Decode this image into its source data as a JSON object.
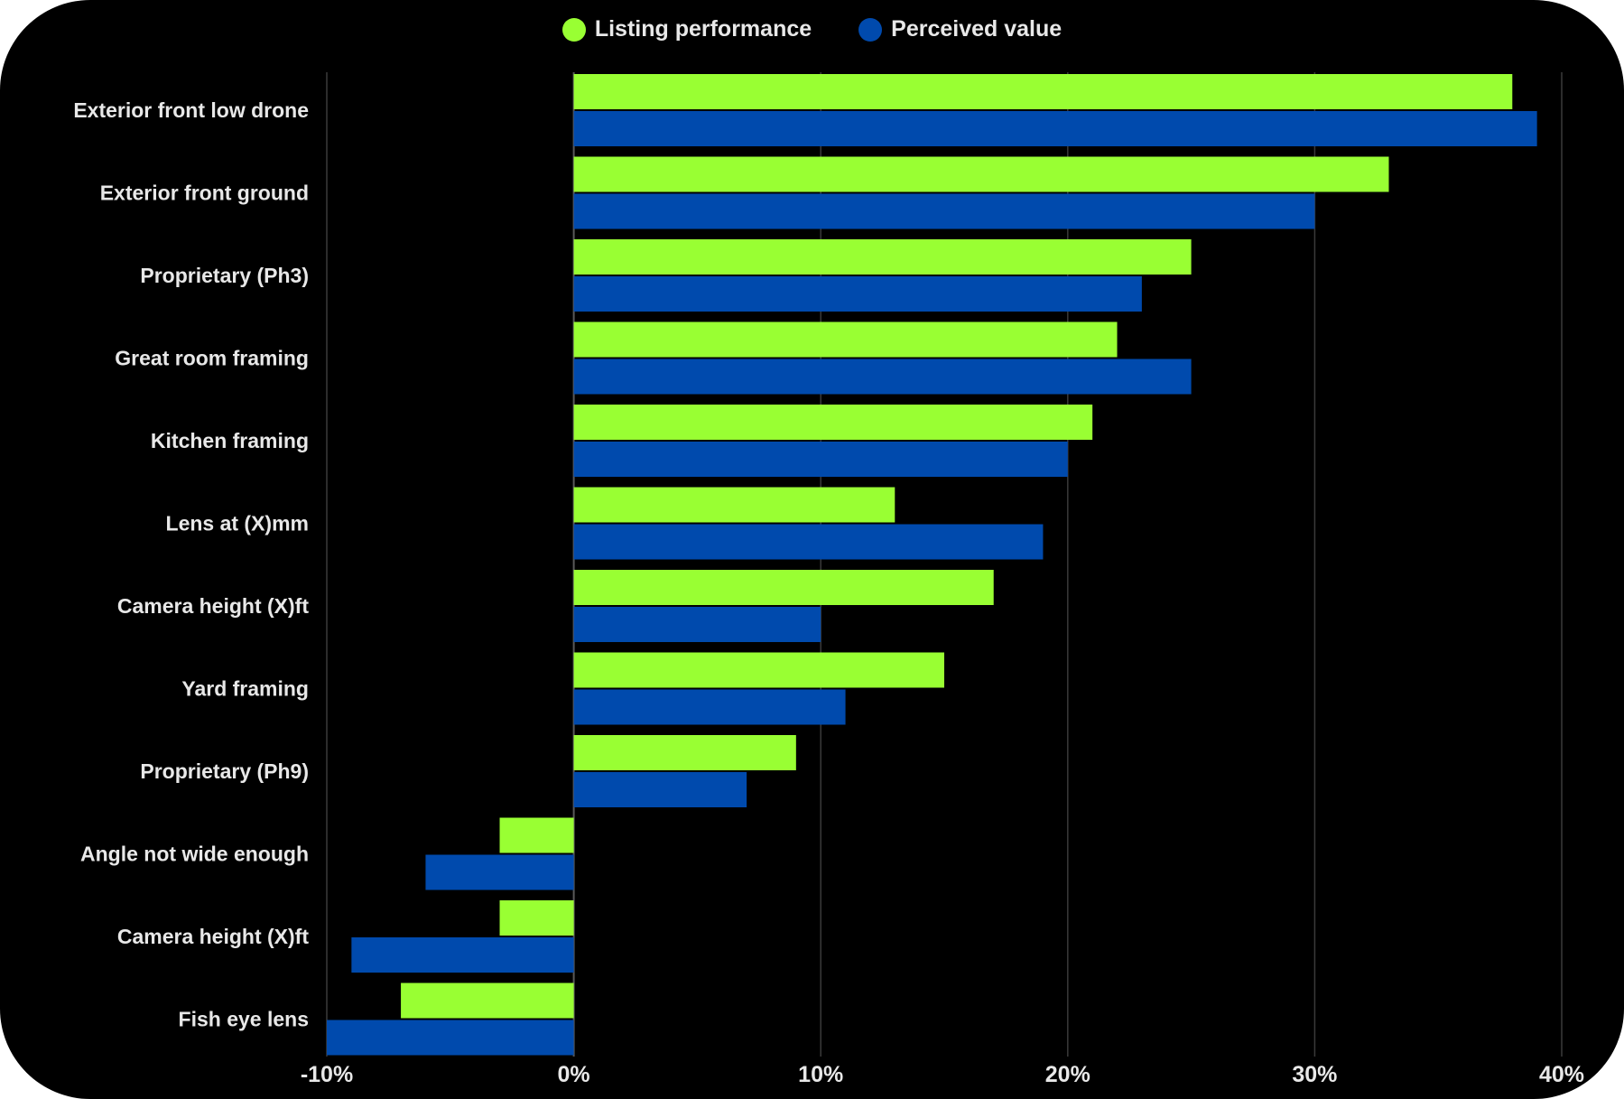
{
  "chart_data": {
    "type": "bar",
    "orientation": "horizontal",
    "categories": [
      "Exterior front low drone",
      "Exterior front ground",
      "Proprietary (Ph3)",
      "Great room framing",
      "Kitchen framing",
      "Lens at (X)mm",
      "Camera height (X)ft",
      "Yard framing",
      "Proprietary (Ph9)",
      "Angle not wide enough",
      "Camera height (X)ft",
      "Fish eye lens"
    ],
    "series": [
      {
        "name": "Listing performance",
        "color": "#99ff33",
        "values": [
          38,
          33,
          25,
          22,
          21,
          13,
          17,
          15,
          9,
          -3,
          -3,
          -7
        ]
      },
      {
        "name": "Perceived value",
        "color": "#004aad",
        "values": [
          39,
          30,
          23,
          25,
          20,
          19,
          10,
          11,
          7,
          -6,
          -9,
          -10
        ]
      }
    ],
    "xlim": [
      -10,
      40
    ],
    "xticks": [
      -10,
      0,
      10,
      20,
      30,
      40
    ],
    "xtick_labels": [
      "-10%",
      "0%",
      "10%",
      "20%",
      "30%",
      "40%"
    ],
    "grid": true,
    "legend_position": "top-center",
    "background": "#000000",
    "text_color": "#e8e8e8",
    "grid_color": "#3a3a3a"
  }
}
